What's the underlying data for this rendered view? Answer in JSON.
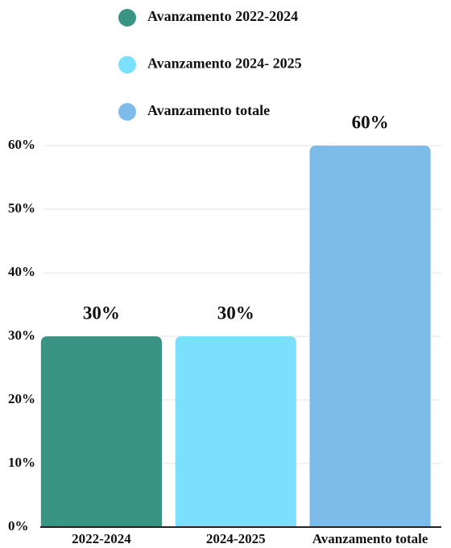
{
  "chart_data": {
    "type": "bar",
    "legend": [
      "Avanzamento 2022-2024",
      "Avanzamento 2024- 2025",
      "Avanzamento totale"
    ],
    "categories": [
      "2022-2024",
      "2024-2025",
      "Avanzamento totale"
    ],
    "values": [
      30,
      30,
      60
    ],
    "value_labels": [
      "30%",
      "30%",
      "60%"
    ],
    "colors": [
      "#3a9484",
      "#7ae0fc",
      "#7dbbe8"
    ],
    "ylim": [
      0,
      60
    ],
    "yticks": [
      {
        "value": 0,
        "label": "0%"
      },
      {
        "value": 10,
        "label": "10%"
      },
      {
        "value": 20,
        "label": "20%"
      },
      {
        "value": 30,
        "label": "30%"
      },
      {
        "value": 40,
        "label": "40%"
      },
      {
        "value": 50,
        "label": "50%"
      },
      {
        "value": 60,
        "label": "60%"
      }
    ],
    "grid": true
  }
}
